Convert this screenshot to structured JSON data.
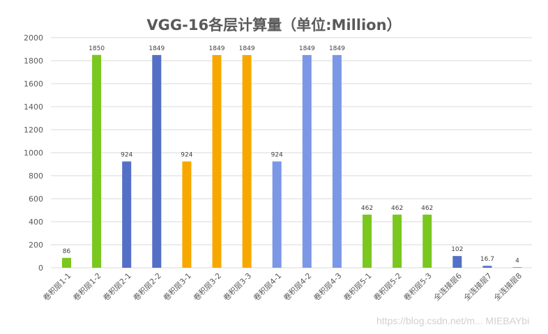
{
  "chart_data": {
    "type": "bar",
    "title": "VGG-16各层计算量（单位:Million）",
    "xlabel": "",
    "ylabel": "",
    "ylim": [
      0,
      2000
    ],
    "yticks": [
      0,
      200,
      400,
      600,
      800,
      1000,
      1200,
      1400,
      1600,
      1800,
      2000
    ],
    "grid": true,
    "legend": null,
    "categories": [
      "卷积层1-1",
      "卷积层1-2",
      "卷积层2-1",
      "卷积层2-2",
      "卷积层3-1",
      "卷积层3-2",
      "卷积层3-3",
      "卷积层4-1",
      "卷积层4-2",
      "卷积层4-3",
      "卷积层5-1",
      "卷积层5-2",
      "卷积层5-3",
      "全连接层6",
      "全连接层7",
      "全连接层8"
    ],
    "values": [
      86,
      1850,
      924,
      1849,
      924,
      1849,
      1849,
      924,
      1849,
      1849,
      462,
      462,
      462,
      102,
      16.7,
      4
    ],
    "data_labels": [
      "86",
      "1850",
      "924",
      "1849",
      "924",
      "1849",
      "1849",
      "924",
      "1849",
      "1849",
      "462",
      "462",
      "462",
      "102",
      "16.7",
      "4"
    ],
    "bar_colors": [
      "#7ac71f",
      "#7ac71f",
      "#5470c6",
      "#5470c6",
      "#f7a800",
      "#f7a800",
      "#f7a800",
      "#7b97e6",
      "#7b97e6",
      "#7b97e6",
      "#7ac71f",
      "#7ac71f",
      "#7ac71f",
      "#5470c6",
      "#5470c6",
      "#5470c6"
    ]
  },
  "watermark": "https://blog.csdn.net/m... MIEBAYbi"
}
